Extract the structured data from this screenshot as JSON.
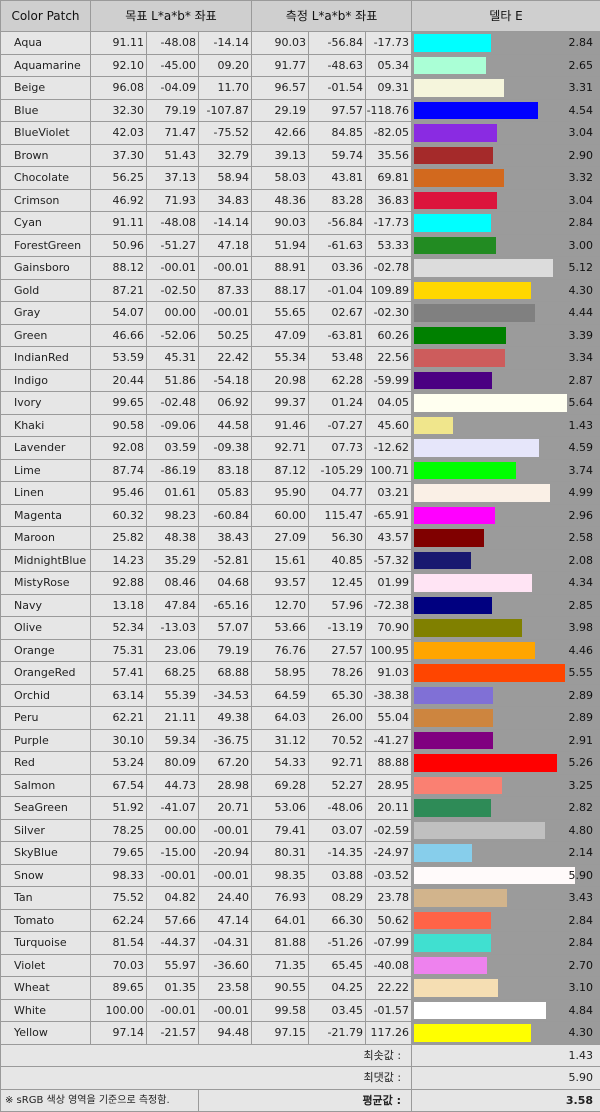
{
  "chart_data": {
    "type": "table",
    "headers": [
      "Color Patch",
      "목표 L*a*b* 좌표",
      "측정 L*a*b* 좌표",
      "델타 E"
    ],
    "rows": [
      {
        "name": "Aqua",
        "target": [
          "91.11",
          "-48.08",
          "-14.14"
        ],
        "measured": [
          "90.03",
          "-56.84",
          "-17.73"
        ],
        "delta_e": 2.84,
        "color": "#00ffff"
      },
      {
        "name": "Aquamarine",
        "target": [
          "92.10",
          "-45.00",
          "09.20"
        ],
        "measured": [
          "91.77",
          "-48.63",
          "05.34"
        ],
        "delta_e": 2.65,
        "color": "#aaffd6"
      },
      {
        "name": "Beige",
        "target": [
          "96.08",
          "-04.09",
          "11.70"
        ],
        "measured": [
          "96.57",
          "-01.54",
          "09.31"
        ],
        "delta_e": 3.31,
        "color": "#f5f5dc"
      },
      {
        "name": "Blue",
        "target": [
          "32.30",
          "79.19",
          "-107.87"
        ],
        "measured": [
          "29.19",
          "97.57",
          "-118.76"
        ],
        "delta_e": 4.54,
        "color": "#0000ff"
      },
      {
        "name": "BlueViolet",
        "target": [
          "42.03",
          "71.47",
          "-75.52"
        ],
        "measured": [
          "42.66",
          "84.85",
          "-82.05"
        ],
        "delta_e": 3.04,
        "color": "#8a2be2"
      },
      {
        "name": "Brown",
        "target": [
          "37.30",
          "51.43",
          "32.79"
        ],
        "measured": [
          "39.13",
          "59.74",
          "35.56"
        ],
        "delta_e": 2.9,
        "color": "#a52a2a"
      },
      {
        "name": "Chocolate",
        "target": [
          "56.25",
          "37.13",
          "58.94"
        ],
        "measured": [
          "58.03",
          "43.81",
          "69.81"
        ],
        "delta_e": 3.32,
        "color": "#d2691e"
      },
      {
        "name": "Crimson",
        "target": [
          "46.92",
          "71.93",
          "34.83"
        ],
        "measured": [
          "48.36",
          "83.28",
          "36.83"
        ],
        "delta_e": 3.04,
        "color": "#dc143c"
      },
      {
        "name": "Cyan",
        "target": [
          "91.11",
          "-48.08",
          "-14.14"
        ],
        "measured": [
          "90.03",
          "-56.84",
          "-17.73"
        ],
        "delta_e": 2.84,
        "color": "#00ffff"
      },
      {
        "name": "ForestGreen",
        "target": [
          "50.96",
          "-51.27",
          "47.18"
        ],
        "measured": [
          "51.94",
          "-61.63",
          "53.33"
        ],
        "delta_e": 3.0,
        "color": "#228b22"
      },
      {
        "name": "Gainsboro",
        "target": [
          "88.12",
          "-00.01",
          "-00.01"
        ],
        "measured": [
          "88.91",
          "03.36",
          "-02.78"
        ],
        "delta_e": 5.12,
        "color": "#dcdcdc"
      },
      {
        "name": "Gold",
        "target": [
          "87.21",
          "-02.50",
          "87.33"
        ],
        "measured": [
          "88.17",
          "-01.04",
          "109.89"
        ],
        "delta_e": 4.3,
        "color": "#ffd700"
      },
      {
        "name": "Gray",
        "target": [
          "54.07",
          "00.00",
          "-00.01"
        ],
        "measured": [
          "55.65",
          "02.67",
          "-02.30"
        ],
        "delta_e": 4.44,
        "color": "#808080"
      },
      {
        "name": "Green",
        "target": [
          "46.66",
          "-52.06",
          "50.25"
        ],
        "measured": [
          "47.09",
          "-63.81",
          "60.26"
        ],
        "delta_e": 3.39,
        "color": "#008000"
      },
      {
        "name": "IndianRed",
        "target": [
          "53.59",
          "45.31",
          "22.42"
        ],
        "measured": [
          "55.34",
          "53.48",
          "22.56"
        ],
        "delta_e": 3.34,
        "color": "#cd5c5c"
      },
      {
        "name": "Indigo",
        "target": [
          "20.44",
          "51.86",
          "-54.18"
        ],
        "measured": [
          "20.98",
          "62.28",
          "-59.99"
        ],
        "delta_e": 2.87,
        "color": "#4b0082"
      },
      {
        "name": "Ivory",
        "target": [
          "99.65",
          "-02.48",
          "06.92"
        ],
        "measured": [
          "99.37",
          "01.24",
          "04.05"
        ],
        "delta_e": 5.64,
        "color": "#fffff0"
      },
      {
        "name": "Khaki",
        "target": [
          "90.58",
          "-09.06",
          "44.58"
        ],
        "measured": [
          "91.46",
          "-07.27",
          "45.60"
        ],
        "delta_e": 1.43,
        "color": "#f0e68c"
      },
      {
        "name": "Lavender",
        "target": [
          "92.08",
          "03.59",
          "-09.38"
        ],
        "measured": [
          "92.71",
          "07.73",
          "-12.62"
        ],
        "delta_e": 4.59,
        "color": "#e6e6fa"
      },
      {
        "name": "Lime",
        "target": [
          "87.74",
          "-86.19",
          "83.18"
        ],
        "measured": [
          "87.12",
          "-105.29",
          "100.71"
        ],
        "delta_e": 3.74,
        "color": "#00ff00"
      },
      {
        "name": "Linen",
        "target": [
          "95.46",
          "01.61",
          "05.83"
        ],
        "measured": [
          "95.90",
          "04.77",
          "03.21"
        ],
        "delta_e": 4.99,
        "color": "#faf0e6"
      },
      {
        "name": "Magenta",
        "target": [
          "60.32",
          "98.23",
          "-60.84"
        ],
        "measured": [
          "60.00",
          "115.47",
          "-65.91"
        ],
        "delta_e": 2.96,
        "color": "#ff00ff"
      },
      {
        "name": "Maroon",
        "target": [
          "25.82",
          "48.38",
          "38.43"
        ],
        "measured": [
          "27.09",
          "56.30",
          "43.57"
        ],
        "delta_e": 2.58,
        "color": "#800000"
      },
      {
        "name": "MidnightBlue",
        "target": [
          "14.23",
          "35.29",
          "-52.81"
        ],
        "measured": [
          "15.61",
          "40.85",
          "-57.32"
        ],
        "delta_e": 2.08,
        "color": "#191970"
      },
      {
        "name": "MistyRose",
        "target": [
          "92.88",
          "08.46",
          "04.68"
        ],
        "measured": [
          "93.57",
          "12.45",
          "01.99"
        ],
        "delta_e": 4.34,
        "color": "#ffe4f4"
      },
      {
        "name": "Navy",
        "target": [
          "13.18",
          "47.84",
          "-65.16"
        ],
        "measured": [
          "12.70",
          "57.96",
          "-72.38"
        ],
        "delta_e": 2.85,
        "color": "#000080"
      },
      {
        "name": "Olive",
        "target": [
          "52.34",
          "-13.03",
          "57.07"
        ],
        "measured": [
          "53.66",
          "-13.19",
          "70.90"
        ],
        "delta_e": 3.98,
        "color": "#808000"
      },
      {
        "name": "Orange",
        "target": [
          "75.31",
          "23.06",
          "79.19"
        ],
        "measured": [
          "76.76",
          "27.57",
          "100.95"
        ],
        "delta_e": 4.46,
        "color": "#ffa500"
      },
      {
        "name": "OrangeRed",
        "target": [
          "57.41",
          "68.25",
          "68.88"
        ],
        "measured": [
          "58.95",
          "78.26",
          "91.03"
        ],
        "delta_e": 5.55,
        "color": "#ff4500"
      },
      {
        "name": "Orchid",
        "target": [
          "63.14",
          "55.39",
          "-34.53"
        ],
        "measured": [
          "64.59",
          "65.30",
          "-38.38"
        ],
        "delta_e": 2.89,
        "color": "#8070d6"
      },
      {
        "name": "Peru",
        "target": [
          "62.21",
          "21.11",
          "49.38"
        ],
        "measured": [
          "64.03",
          "26.00",
          "55.04"
        ],
        "delta_e": 2.89,
        "color": "#cd853f"
      },
      {
        "name": "Purple",
        "target": [
          "30.10",
          "59.34",
          "-36.75"
        ],
        "measured": [
          "31.12",
          "70.52",
          "-41.27"
        ],
        "delta_e": 2.91,
        "color": "#800080"
      },
      {
        "name": "Red",
        "target": [
          "53.24",
          "80.09",
          "67.20"
        ],
        "measured": [
          "54.33",
          "92.71",
          "88.88"
        ],
        "delta_e": 5.26,
        "color": "#ff0000"
      },
      {
        "name": "Salmon",
        "target": [
          "67.54",
          "44.73",
          "28.98"
        ],
        "measured": [
          "69.28",
          "52.27",
          "28.95"
        ],
        "delta_e": 3.25,
        "color": "#fa8072"
      },
      {
        "name": "SeaGreen",
        "target": [
          "51.92",
          "-41.07",
          "20.71"
        ],
        "measured": [
          "53.06",
          "-48.06",
          "20.11"
        ],
        "delta_e": 2.82,
        "color": "#2e8b57"
      },
      {
        "name": "Silver",
        "target": [
          "78.25",
          "00.00",
          "-00.01"
        ],
        "measured": [
          "79.41",
          "03.07",
          "-02.59"
        ],
        "delta_e": 4.8,
        "color": "#c0c0c0"
      },
      {
        "name": "SkyBlue",
        "target": [
          "79.65",
          "-15.00",
          "-20.94"
        ],
        "measured": [
          "80.31",
          "-14.35",
          "-24.97"
        ],
        "delta_e": 2.14,
        "color": "#87ceeb"
      },
      {
        "name": "Snow",
        "target": [
          "98.33",
          "-00.01",
          "-00.01"
        ],
        "measured": [
          "98.35",
          "03.88",
          "-03.52"
        ],
        "delta_e": 5.9,
        "color": "#fffafa"
      },
      {
        "name": "Tan",
        "target": [
          "75.52",
          "04.82",
          "24.40"
        ],
        "measured": [
          "76.93",
          "08.29",
          "23.78"
        ],
        "delta_e": 3.43,
        "color": "#d2b48c"
      },
      {
        "name": "Tomato",
        "target": [
          "62.24",
          "57.66",
          "47.14"
        ],
        "measured": [
          "64.01",
          "66.30",
          "50.62"
        ],
        "delta_e": 2.84,
        "color": "#ff6347"
      },
      {
        "name": "Turquoise",
        "target": [
          "81.54",
          "-44.37",
          "-04.31"
        ],
        "measured": [
          "81.88",
          "-51.26",
          "-07.99"
        ],
        "delta_e": 2.84,
        "color": "#40e0d0"
      },
      {
        "name": "Violet",
        "target": [
          "70.03",
          "55.97",
          "-36.60"
        ],
        "measured": [
          "71.35",
          "65.45",
          "-40.08"
        ],
        "delta_e": 2.7,
        "color": "#ee82ee"
      },
      {
        "name": "Wheat",
        "target": [
          "89.65",
          "01.35",
          "23.58"
        ],
        "measured": [
          "90.55",
          "04.25",
          "22.22"
        ],
        "delta_e": 3.1,
        "color": "#f5deb3"
      },
      {
        "name": "White",
        "target": [
          "100.00",
          "-00.01",
          "-00.01"
        ],
        "measured": [
          "99.58",
          "03.45",
          "-01.57"
        ],
        "delta_e": 4.84,
        "color": "#ffffff"
      },
      {
        "name": "Yellow",
        "target": [
          "97.14",
          "-21.57",
          "94.48"
        ],
        "measured": [
          "97.15",
          "-21.79",
          "117.26"
        ],
        "delta_e": 4.3,
        "color": "#ffff00"
      }
    ],
    "delta_e_range": [
      0,
      6.8
    ],
    "summary": [
      {
        "label": "최솟값 :",
        "value": "1.43"
      },
      {
        "label": "최댓값 :",
        "value": "5.90"
      },
      {
        "label": "평균값 :",
        "value": "3.58"
      }
    ],
    "note": "※ sRGB 색상 영역을 기준으로 측정함."
  }
}
